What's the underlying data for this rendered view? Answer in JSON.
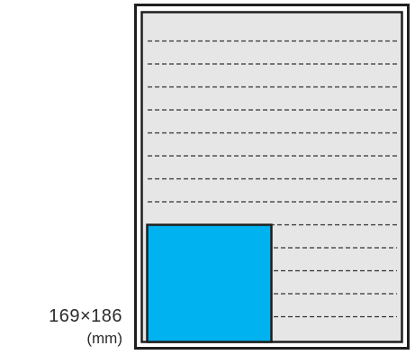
{
  "label": {
    "dimensions": "169×186",
    "unit": "(mm)"
  },
  "colors": {
    "page_fill": "#e6e6e6",
    "page_border": "#1f1f1f",
    "highlight_fill": "#00b3f0",
    "highlight_border": "#1f1f1f",
    "rule_line": "#333333"
  }
}
